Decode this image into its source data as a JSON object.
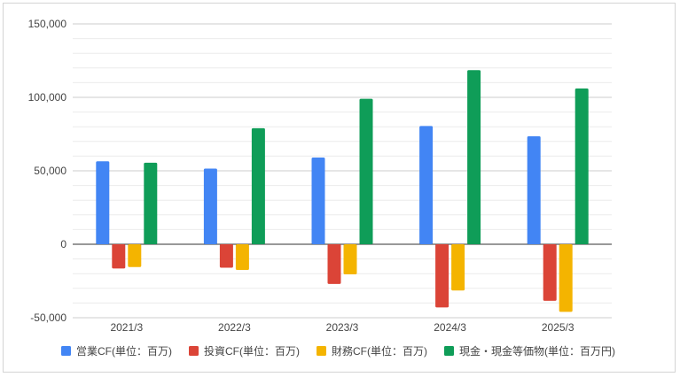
{
  "chart_data": {
    "type": "bar",
    "categories": [
      "2021/3",
      "2022/3",
      "2023/3",
      "2024/3",
      "2025/3"
    ],
    "series": [
      {
        "name": "営業CF(単位：百万)",
        "color": "#4285f4",
        "values": [
          56500,
          51500,
          59000,
          80500,
          73500
        ]
      },
      {
        "name": "投資CF(単位：百万)",
        "color": "#db4437",
        "values": [
          -16500,
          -16000,
          -27000,
          -43000,
          -38500
        ]
      },
      {
        "name": "財務CF(単位：百万)",
        "color": "#f4b400",
        "values": [
          -15500,
          -17500,
          -20500,
          -31500,
          -46000
        ]
      },
      {
        "name": "現金・現金等価物(単位：百万円)",
        "color": "#0f9d58",
        "values": [
          55500,
          79000,
          99000,
          118500,
          106000
        ]
      }
    ],
    "yticks": [
      150000,
      100000,
      50000,
      0,
      -50000
    ],
    "ytick_labels": [
      "150,000",
      "100,000",
      "50,000",
      "0",
      "-50,000"
    ],
    "ylim": [
      -50000,
      150000
    ],
    "grid": true,
    "legend_position": "bottom"
  }
}
